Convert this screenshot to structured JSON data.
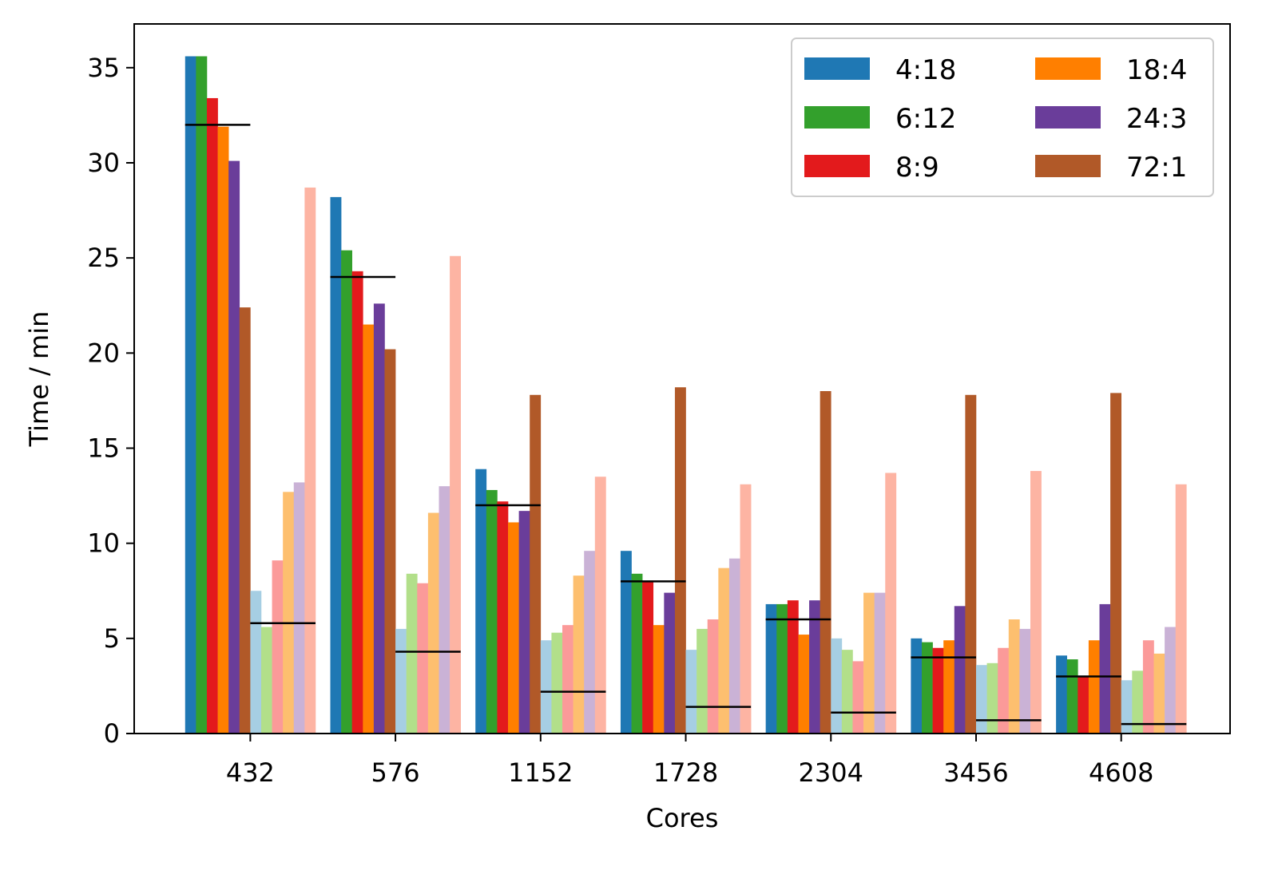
{
  "chart_data": {
    "type": "bar",
    "title": "",
    "xlabel": "Cores",
    "ylabel": "Time / min",
    "categories": [
      "432",
      "576",
      "1152",
      "1728",
      "2304",
      "3456",
      "4608"
    ],
    "ylim": [
      0,
      37.3
    ],
    "yticks": [
      0,
      5,
      10,
      15,
      20,
      25,
      30,
      35
    ],
    "grid": false,
    "legend_placement": "top-right",
    "legend_columns": 2,
    "series": [
      {
        "name": "4:18",
        "color": "#1f78b4",
        "values": [
          35.6,
          28.2,
          13.9,
          9.6,
          6.8,
          5.0,
          4.1
        ]
      },
      {
        "name": "6:12",
        "color": "#33a02c",
        "values": [
          35.6,
          25.4,
          12.8,
          8.4,
          6.8,
          4.8,
          3.9
        ]
      },
      {
        "name": "8:9",
        "color": "#e31a1c",
        "values": [
          33.4,
          24.3,
          12.2,
          8.0,
          7.0,
          4.5,
          3.0
        ]
      },
      {
        "name": "18:4",
        "color": "#ff7f00",
        "values": [
          31.9,
          21.5,
          11.1,
          5.7,
          5.2,
          4.9,
          4.9
        ]
      },
      {
        "name": "24:3",
        "color": "#6a3d9a",
        "values": [
          30.1,
          22.6,
          11.7,
          7.4,
          7.0,
          6.7,
          6.8
        ]
      },
      {
        "name": "72:1",
        "color": "#b15928",
        "values": [
          22.4,
          20.2,
          17.8,
          18.2,
          18.0,
          17.8,
          17.9
        ]
      },
      {
        "name": "",
        "color": "#a6cee3",
        "values": [
          7.5,
          5.5,
          4.9,
          4.4,
          5.0,
          3.6,
          2.8
        ]
      },
      {
        "name": "",
        "color": "#b2df8a",
        "values": [
          5.6,
          8.4,
          5.3,
          5.5,
          4.4,
          3.7,
          3.3
        ]
      },
      {
        "name": "",
        "color": "#fb9a99",
        "values": [
          9.1,
          7.9,
          5.7,
          6.0,
          3.8,
          4.5,
          4.9
        ]
      },
      {
        "name": "",
        "color": "#fdbf6f",
        "values": [
          12.7,
          11.6,
          8.3,
          8.7,
          7.4,
          6.0,
          4.2
        ]
      },
      {
        "name": "",
        "color": "#cab2d6",
        "values": [
          13.2,
          13.0,
          9.6,
          9.2,
          7.4,
          5.5,
          5.6
        ]
      },
      {
        "name": "",
        "color": "#fdb4a3",
        "values": [
          28.7,
          25.1,
          13.5,
          13.1,
          13.7,
          13.8,
          13.1
        ]
      }
    ],
    "reference_lines": {
      "color": "#000000",
      "primary": [
        32.0,
        24.0,
        12.0,
        8.0,
        6.0,
        4.0,
        3.0
      ],
      "secondary": [
        5.8,
        4.3,
        2.2,
        1.4,
        1.1,
        0.7,
        0.5
      ]
    }
  }
}
